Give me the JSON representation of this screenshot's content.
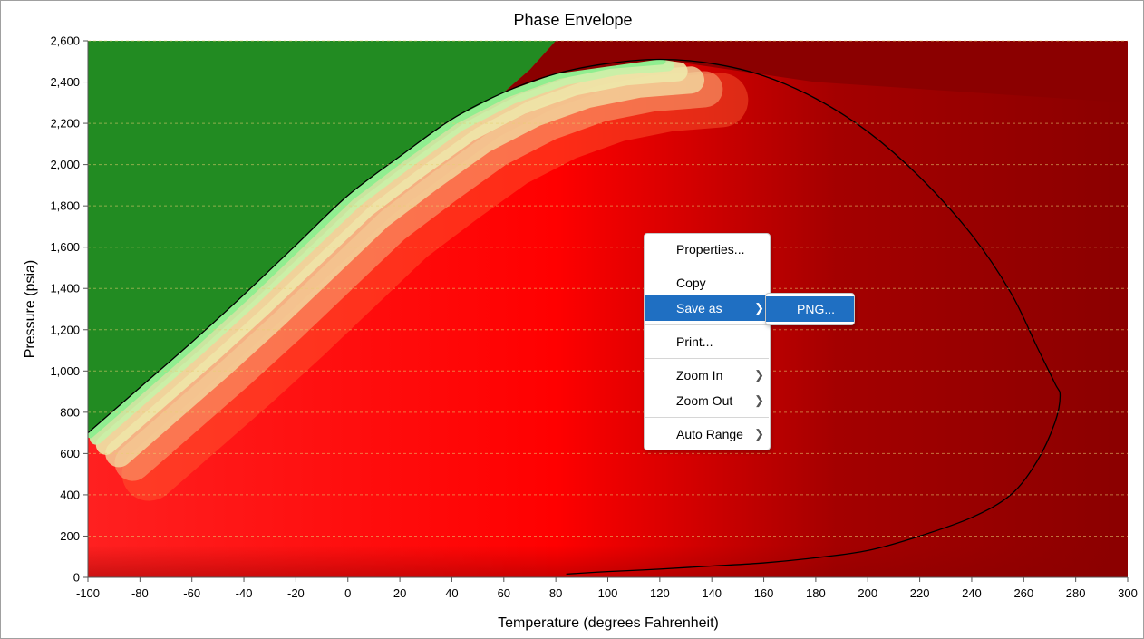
{
  "chart_data": {
    "type": "heatmap",
    "title": "Phase Envelope",
    "xlabel": "Temperature (degrees Fahrenheit)",
    "ylabel": "Pressure (psia)",
    "xlim": [
      -100,
      300
    ],
    "ylim": [
      0,
      2600
    ],
    "xticks": [
      "-100",
      "-80",
      "-60",
      "-40",
      "-20",
      "0",
      "20",
      "40",
      "60",
      "80",
      "100",
      "120",
      "140",
      "160",
      "180",
      "200",
      "220",
      "240",
      "260",
      "280",
      "300"
    ],
    "yticks": [
      "0",
      "200",
      "400",
      "600",
      "800",
      "1,000",
      "1,200",
      "1,400",
      "1,600",
      "1,800",
      "2,000",
      "2,200",
      "2,400",
      "2,600"
    ],
    "grid": "horizontal dashed",
    "colors": {
      "single_phase_liquid": "#228B22",
      "near_bubble": "#90EE90",
      "mid": "#EEE8AA",
      "two_phase": "#FF0000",
      "single_phase_gas": "#8B0000",
      "envelope_line": "#000000"
    },
    "envelope": [
      [
        -100,
        700
      ],
      [
        -80,
        920
      ],
      [
        -60,
        1140
      ],
      [
        -40,
        1370
      ],
      [
        -20,
        1610
      ],
      [
        0,
        1850
      ],
      [
        20,
        2040
      ],
      [
        40,
        2220
      ],
      [
        60,
        2350
      ],
      [
        80,
        2440
      ],
      [
        100,
        2490
      ],
      [
        120,
        2510
      ],
      [
        140,
        2490
      ],
      [
        160,
        2430
      ],
      [
        180,
        2320
      ],
      [
        200,
        2160
      ],
      [
        220,
        1940
      ],
      [
        240,
        1660
      ],
      [
        255,
        1380
      ],
      [
        265,
        1120
      ],
      [
        272,
        940
      ],
      [
        274,
        880
      ],
      [
        272,
        750
      ],
      [
        265,
        560
      ],
      [
        255,
        400
      ],
      [
        240,
        290
      ],
      [
        220,
        200
      ],
      [
        200,
        130
      ],
      [
        180,
        95
      ],
      [
        160,
        70
      ],
      [
        140,
        55
      ],
      [
        120,
        40
      ],
      [
        100,
        28
      ],
      [
        84,
        16
      ]
    ]
  },
  "context_menu": {
    "items": [
      {
        "label": "Properties..."
      },
      {
        "label": "Copy"
      },
      {
        "label": "Save as"
      },
      {
        "label": "Print..."
      },
      {
        "label": "Zoom In"
      },
      {
        "label": "Zoom Out"
      },
      {
        "label": "Auto Range"
      }
    ],
    "submenu_save_as": [
      "PNG..."
    ]
  }
}
